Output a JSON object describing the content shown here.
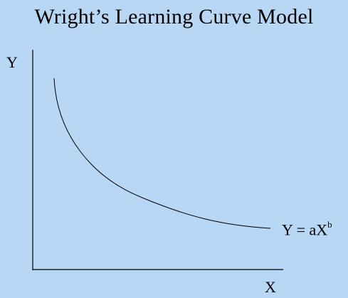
{
  "title": "Wright’s Learning Curve Model",
  "axes": {
    "y_label": "Y",
    "x_label": "X"
  },
  "equation": {
    "lhs": "Y = aX",
    "exponent": "b"
  },
  "colors": {
    "background": "#b7d7f5",
    "ink": "#000000"
  }
}
